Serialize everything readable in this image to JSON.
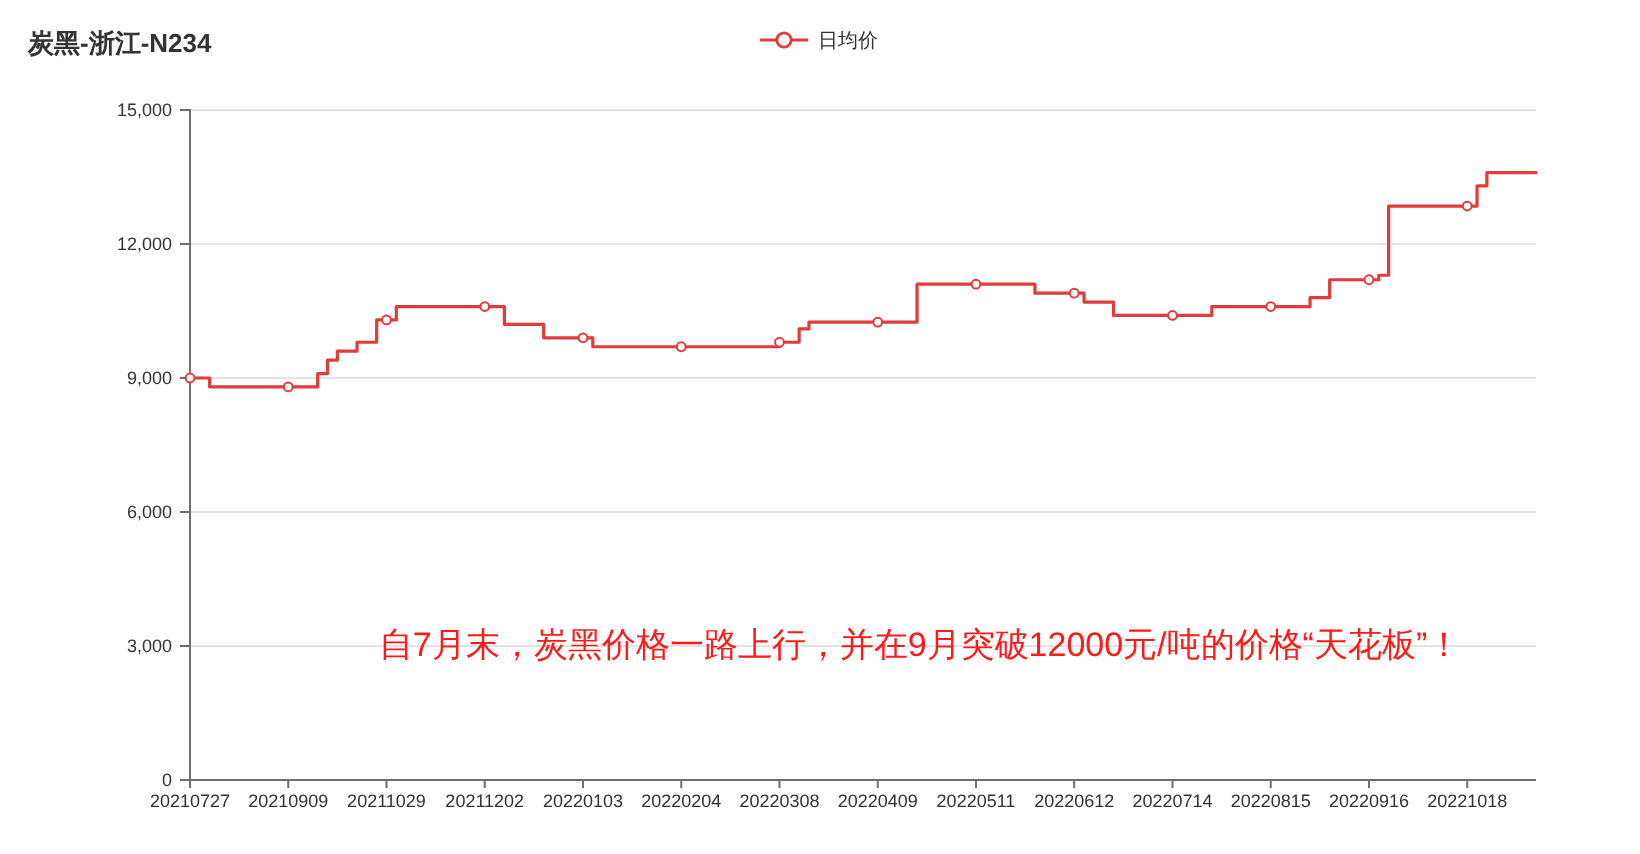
{
  "chart_data": {
    "type": "step",
    "title": "炭黑-浙江-N234",
    "categories": [
      "20210727",
      null,
      null,
      null,
      null,
      null,
      null,
      null,
      null,
      null,
      "20210909",
      null,
      null,
      null,
      null,
      null,
      null,
      null,
      null,
      null,
      "20211029",
      null,
      null,
      null,
      null,
      null,
      null,
      null,
      null,
      null,
      "20211202",
      null,
      null,
      null,
      null,
      null,
      null,
      null,
      null,
      null,
      "20220103",
      null,
      null,
      null,
      null,
      null,
      null,
      null,
      null,
      null,
      "20220204",
      null,
      null,
      null,
      null,
      null,
      null,
      null,
      null,
      null,
      "20220308",
      null,
      null,
      null,
      null,
      null,
      null,
      null,
      null,
      null,
      "20220409",
      null,
      null,
      null,
      null,
      null,
      null,
      null,
      null,
      null,
      "20220511",
      null,
      null,
      null,
      null,
      null,
      null,
      null,
      null,
      null,
      "20220612",
      null,
      null,
      null,
      null,
      null,
      null,
      null,
      null,
      null,
      "20220714",
      null,
      null,
      null,
      null,
      null,
      null,
      null,
      null,
      null,
      "20220815",
      null,
      null,
      null,
      null,
      null,
      null,
      null,
      null,
      null,
      "20220916",
      null,
      null,
      null,
      null,
      null,
      null,
      null,
      null,
      null,
      "20221018",
      null,
      null,
      null,
      null,
      null,
      null,
      null
    ],
    "series": [
      {
        "name": "日均价",
        "color": "#e23b3b",
        "values": [
          9000,
          9000,
          8800,
          8800,
          8800,
          8800,
          8800,
          8800,
          8800,
          8800,
          8800,
          8800,
          8800,
          9100,
          9400,
          9600,
          9600,
          9800,
          9800,
          10300,
          10300,
          10600,
          10600,
          10600,
          10600,
          10600,
          10600,
          10600,
          10600,
          10600,
          10600,
          10600,
          10200,
          10200,
          10200,
          10200,
          9900,
          9900,
          9900,
          9900,
          9900,
          9700,
          9700,
          9700,
          9700,
          9700,
          9700,
          9700,
          9700,
          9700,
          9700,
          9700,
          9700,
          9700,
          9700,
          9700,
          9700,
          9700,
          9700,
          9700,
          9800,
          9800,
          10100,
          10250,
          10250,
          10250,
          10250,
          10250,
          10250,
          10250,
          10250,
          10250,
          10250,
          10250,
          11100,
          11100,
          11100,
          11100,
          11100,
          11100,
          11100,
          11100,
          11100,
          11100,
          11100,
          11100,
          10900,
          10900,
          10900,
          10900,
          10900,
          10700,
          10700,
          10700,
          10400,
          10400,
          10400,
          10400,
          10400,
          10400,
          10400,
          10400,
          10400,
          10400,
          10600,
          10600,
          10600,
          10600,
          10600,
          10600,
          10600,
          10600,
          10600,
          10600,
          10800,
          10800,
          11200,
          11200,
          11200,
          11200,
          11200,
          11300,
          12850,
          12850,
          12850,
          12850,
          12850,
          12850,
          12850,
          12850,
          12850,
          13300,
          13600,
          13600,
          13600,
          13600,
          13600,
          13600
        ]
      },
      {
        "type": "scatter",
        "marker": "circle",
        "color": "#e23b3b",
        "x": [
          "20210727",
          "20210909",
          "20211029",
          "20211202",
          "20220103",
          "20220204",
          "20220308",
          "20220409",
          "20220511",
          "20220612",
          "20220714",
          "20220815",
          "20220916",
          "20221018"
        ],
        "values": [
          9000,
          8800,
          10300,
          10600,
          9900,
          9700,
          9800,
          10250,
          11100,
          10900,
          10400,
          10600,
          11200,
          12850
        ]
      }
    ],
    "ylim": [
      0,
      15000
    ],
    "yticks": [
      0,
      {
        "value": 3000,
        "label": "3,000"
      },
      {
        "value": 6000,
        "label": "6,000"
      },
      {
        "value": 9000,
        "label": "9,000"
      },
      {
        "value": 12000,
        "label": "12,000"
      },
      {
        "value": 15000,
        "label": "15,000"
      }
    ],
    "grid": "y",
    "legend": "top",
    "line_style": "solid",
    "annotations": [
      "自7月末，炭黑价格一路上行，并在9月突破12000元/吨的价格“天花板”！"
    ]
  }
}
